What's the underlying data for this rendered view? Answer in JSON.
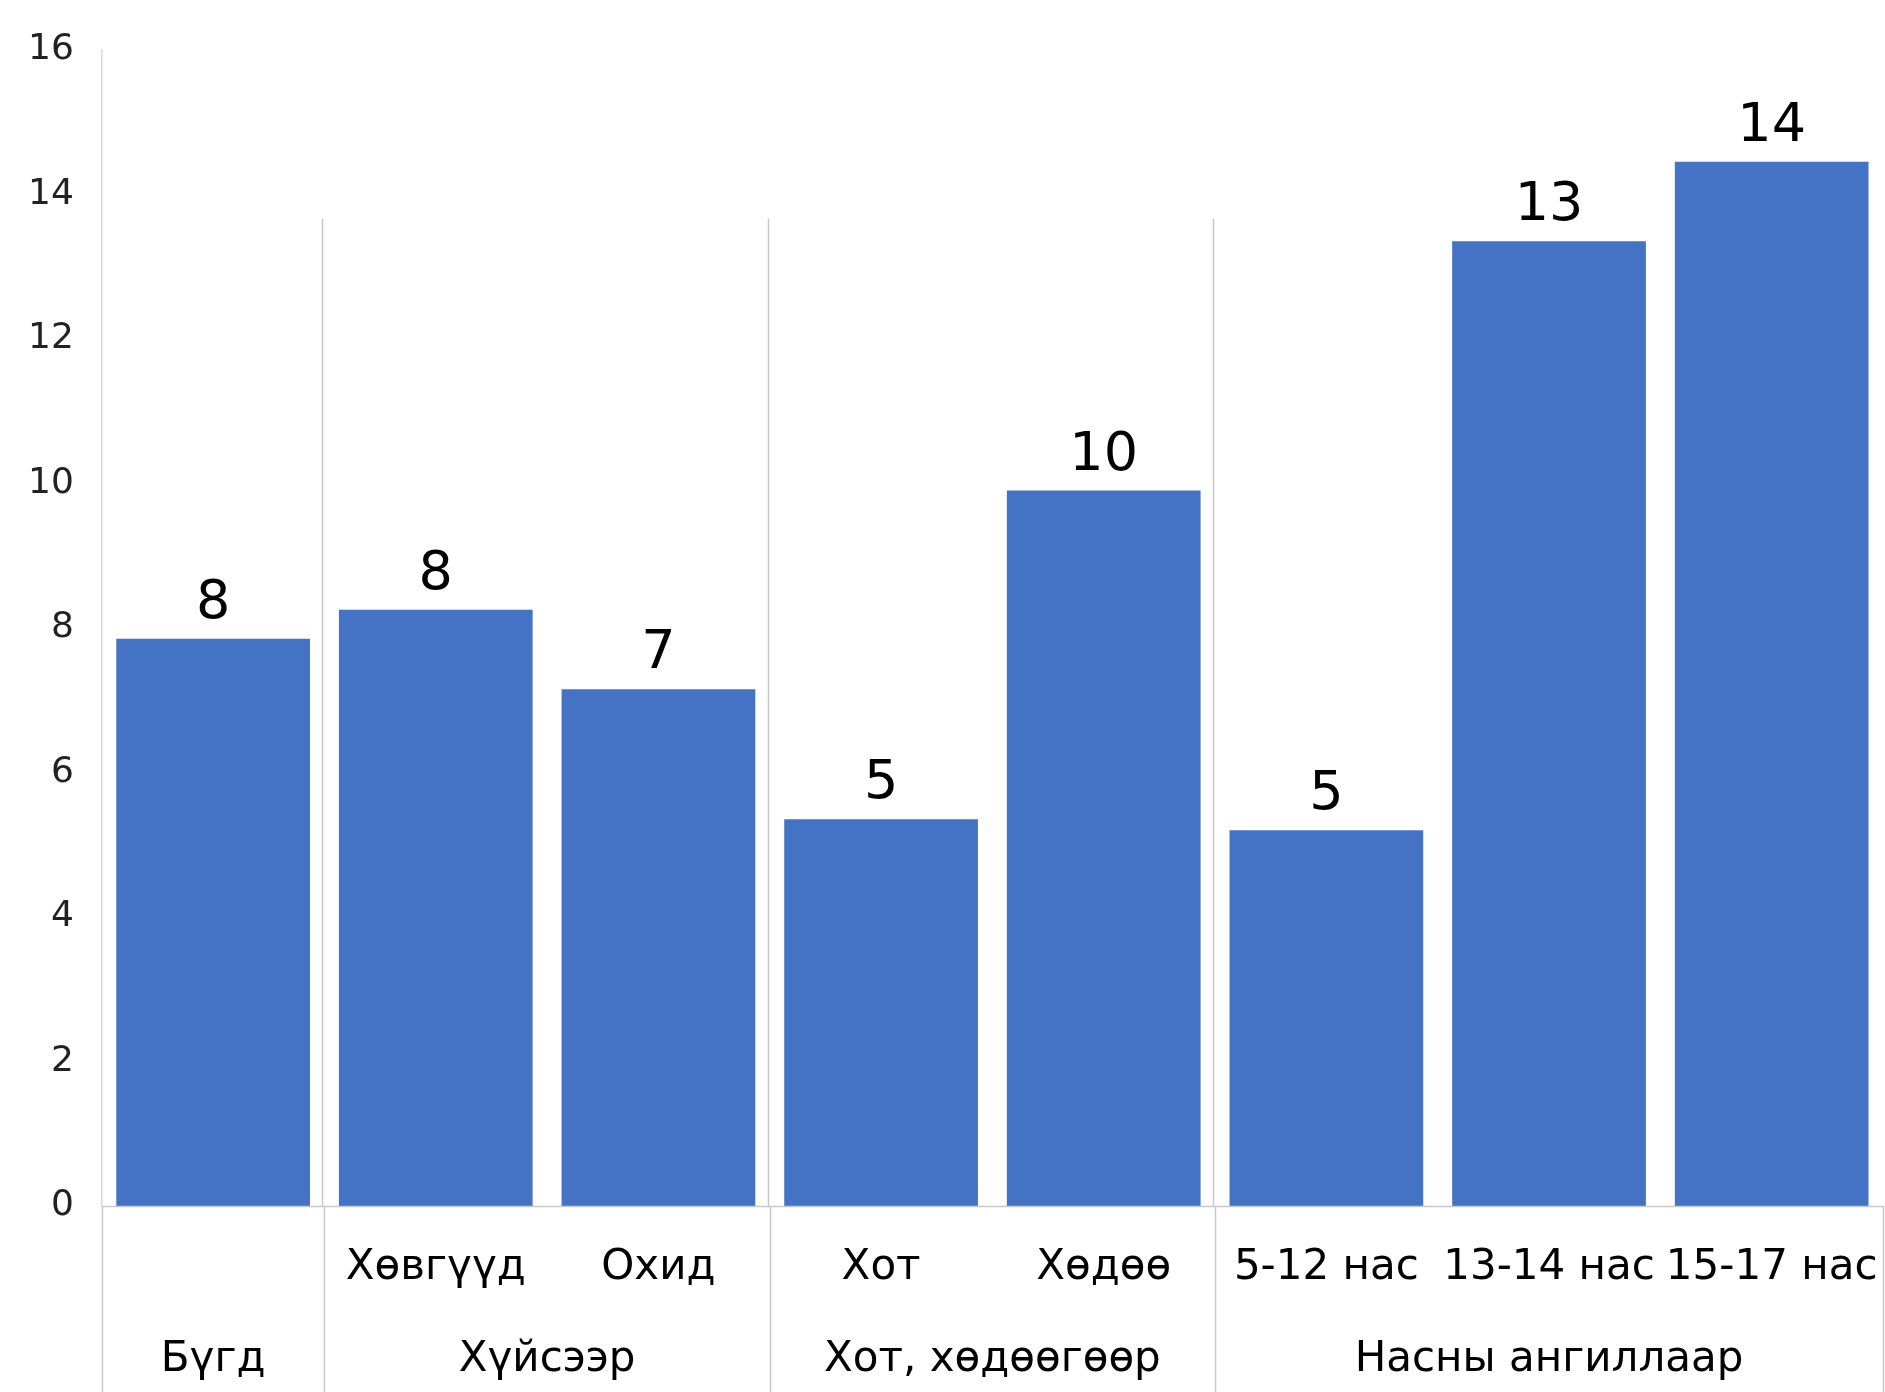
{
  "chart_data": {
    "type": "bar",
    "categories": [
      null,
      "Хөвгүүд",
      "Охид",
      "Хот",
      "Хөдөө",
      "5-12 нас",
      "13-14 нас",
      "15-17 нас"
    ],
    "values": [
      7.85,
      8.25,
      7.15,
      5.35,
      9.9,
      5.2,
      13.35,
      14.45
    ],
    "value_labels": [
      "8",
      "8",
      "7",
      "5",
      "10",
      "5",
      "13",
      "14"
    ],
    "color": "#4472c4",
    "annotations": [
      "Бүгд",
      "Хүйсээр",
      "Хот, хөдөөгөөр",
      "Насны ангиллаар"
    ],
    "ylim": [
      0,
      16
    ],
    "yticks": [
      0,
      2,
      4,
      6,
      8,
      10,
      12,
      14,
      16
    ],
    "grid": false,
    "legend": false
  }
}
